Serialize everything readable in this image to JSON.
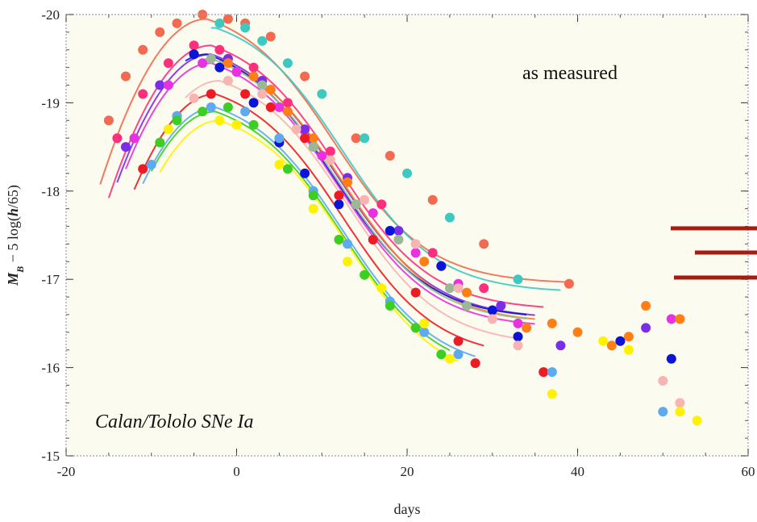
{
  "chart_data": {
    "type": "scatter",
    "xlabel": "days",
    "ylabel": "M_B − 5 log(h/65)",
    "ylabel_parts": {
      "m": "M",
      "sub": "B",
      "rest": " − 5 log(",
      "h": "h",
      "tail": "/65)"
    },
    "xlim": [
      -20,
      60
    ],
    "ylim": [
      -15,
      -20
    ],
    "y_inverted": true,
    "x_ticks": [
      -20,
      0,
      20,
      40,
      60
    ],
    "x_tick_labels": [
      "-20",
      "0",
      "20",
      "40",
      "60"
    ],
    "y_ticks": [
      -15,
      -16,
      -17,
      -18,
      -19,
      -20
    ],
    "y_tick_labels": [
      "-15",
      "-16",
      "-17",
      "-18",
      "-19",
      "-20"
    ],
    "annotations": {
      "top_right": "as measured",
      "bottom_left": "Calan/Tololo SNe Ia"
    },
    "plot_background": "#fbfcef",
    "frame_color": "#9aa0b8",
    "marker_lines_color": "#a31d12",
    "series": [
      {
        "color": "#f26a4f",
        "peak": -19.95,
        "t0": -3.5,
        "decline": 0.04,
        "x_end": 39,
        "points": [
          [
            -15,
            -18.8
          ],
          [
            -13,
            -19.3
          ],
          [
            -11,
            -19.6
          ],
          [
            -9,
            -19.8
          ],
          [
            -7,
            -19.9
          ],
          [
            -4,
            -20.0
          ],
          [
            -1,
            -19.95
          ],
          [
            1,
            -19.9
          ],
          [
            4,
            -19.75
          ],
          [
            8,
            -19.3
          ],
          [
            14,
            -18.6
          ],
          [
            18,
            -18.4
          ],
          [
            23,
            -17.9
          ],
          [
            29,
            -17.4
          ],
          [
            39,
            -16.95
          ]
        ]
      },
      {
        "color": "#3ec9c0",
        "peak": -19.85,
        "t0": -2.5,
        "decline": 0.041,
        "x_end": 38,
        "points": [
          [
            -2,
            -19.9
          ],
          [
            1,
            -19.85
          ],
          [
            3,
            -19.7
          ],
          [
            6,
            -19.45
          ],
          [
            10,
            -19.1
          ],
          [
            15,
            -18.6
          ],
          [
            20,
            -18.2
          ],
          [
            25,
            -17.7
          ],
          [
            33,
            -17.0
          ]
        ]
      },
      {
        "color": "#ff2f7e",
        "peak": -19.65,
        "t0": -3.0,
        "decline": 0.045,
        "x_end": 36,
        "points": [
          [
            -14,
            -18.6
          ],
          [
            -11,
            -19.1
          ],
          [
            -8,
            -19.45
          ],
          [
            -5,
            -19.65
          ],
          [
            -2,
            -19.6
          ],
          [
            2,
            -19.4
          ],
          [
            6,
            -19.0
          ],
          [
            11,
            -18.45
          ],
          [
            17,
            -17.85
          ],
          [
            23,
            -17.3
          ],
          [
            29,
            -16.9
          ]
        ]
      },
      {
        "color": "#7b2ee8",
        "peak": -19.55,
        "t0": -3.0,
        "decline": 0.047,
        "x_end": 35,
        "points": [
          [
            -13,
            -18.5
          ],
          [
            -9,
            -19.2
          ],
          [
            -5,
            -19.55
          ],
          [
            -1,
            -19.5
          ],
          [
            3,
            -19.25
          ],
          [
            8,
            -18.7
          ],
          [
            13,
            -18.15
          ],
          [
            19,
            -17.55
          ],
          [
            24,
            -17.15
          ],
          [
            31,
            -16.7
          ],
          [
            38,
            -16.25
          ],
          [
            48,
            -16.45
          ]
        ]
      },
      {
        "color": "#e632e0",
        "peak": -19.45,
        "t0": -3.0,
        "decline": 0.046,
        "x_end": 35,
        "points": [
          [
            -12,
            -18.6
          ],
          [
            -8,
            -19.2
          ],
          [
            -4,
            -19.45
          ],
          [
            0,
            -19.35
          ],
          [
            5,
            -18.95
          ],
          [
            10,
            -18.4
          ],
          [
            16,
            -17.75
          ],
          [
            21,
            -17.3
          ],
          [
            26,
            -16.95
          ],
          [
            33,
            -16.5
          ],
          [
            51,
            -16.55
          ]
        ]
      },
      {
        "color": "#ff7f16",
        "peak": -19.5,
        "t0": -2.5,
        "decline": 0.046,
        "x_end": 35,
        "points": [
          [
            -1,
            -19.45
          ],
          [
            2,
            -19.3
          ],
          [
            4,
            -19.15
          ],
          [
            6,
            -18.9
          ],
          [
            9,
            -18.6
          ],
          [
            13,
            -18.1
          ],
          [
            18,
            -17.55
          ],
          [
            22,
            -17.2
          ],
          [
            27,
            -16.85
          ],
          [
            34,
            -16.45
          ],
          [
            37,
            -16.5
          ],
          [
            40,
            -16.4
          ],
          [
            44,
            -16.25
          ],
          [
            46,
            -16.35
          ],
          [
            48,
            -16.7
          ],
          [
            52,
            -16.55
          ]
        ]
      },
      {
        "color": "#0c14d8",
        "peak": -19.55,
        "t0": -3.5,
        "decline": 0.048,
        "x_end": 34,
        "points": [
          [
            -5,
            -19.55
          ],
          [
            -2,
            -19.4
          ],
          [
            2,
            -19.0
          ],
          [
            5,
            -18.55
          ],
          [
            8,
            -18.2
          ],
          [
            12,
            -17.85
          ],
          [
            18,
            -17.55
          ],
          [
            24,
            -17.15
          ],
          [
            30,
            -16.65
          ],
          [
            33,
            -16.35
          ],
          [
            45,
            -16.3
          ],
          [
            51,
            -16.1
          ]
        ]
      },
      {
        "color": "#9ab895",
        "peak": -19.5,
        "t0": -3.0,
        "decline": 0.049,
        "x_end": 34,
        "points": [
          [
            -3,
            -19.5
          ],
          [
            3,
            -19.2
          ],
          [
            9,
            -18.5
          ],
          [
            14,
            -17.85
          ],
          [
            19,
            -17.45
          ],
          [
            25,
            -16.9
          ],
          [
            27,
            -16.7
          ]
        ]
      },
      {
        "color": "#f7b4b1",
        "peak": -19.25,
        "t0": -2.0,
        "decline": 0.06,
        "x_end": 33,
        "points": [
          [
            -5,
            -19.05
          ],
          [
            -1,
            -19.25
          ],
          [
            3,
            -19.1
          ],
          [
            7,
            -18.7
          ],
          [
            11,
            -18.35
          ],
          [
            15,
            -17.9
          ],
          [
            21,
            -17.4
          ],
          [
            26,
            -16.9
          ],
          [
            30,
            -16.55
          ],
          [
            33,
            -16.25
          ],
          [
            50,
            -15.85
          ],
          [
            52,
            -15.6
          ]
        ]
      },
      {
        "color": "#ed1c24",
        "peak": -19.1,
        "t0": -2.5,
        "decline": 0.064,
        "x_end": 29,
        "points": [
          [
            -11,
            -18.25
          ],
          [
            -7,
            -18.85
          ],
          [
            -3,
            -19.1
          ],
          [
            1,
            -19.1
          ],
          [
            4,
            -18.95
          ],
          [
            8,
            -18.6
          ],
          [
            12,
            -17.95
          ],
          [
            16,
            -17.45
          ],
          [
            21,
            -16.85
          ],
          [
            26,
            -16.3
          ],
          [
            28,
            -16.05
          ],
          [
            36,
            -15.95
          ]
        ]
      },
      {
        "color": "#5eaaf0",
        "peak": -18.95,
        "t0": -2.5,
        "decline": 0.068,
        "x_end": 28,
        "points": [
          [
            -10,
            -18.3
          ],
          [
            -7,
            -18.85
          ],
          [
            -3,
            -18.95
          ],
          [
            1,
            -18.9
          ],
          [
            5,
            -18.6
          ],
          [
            9,
            -18.0
          ],
          [
            13,
            -17.4
          ],
          [
            18,
            -16.75
          ],
          [
            22,
            -16.4
          ],
          [
            26,
            -16.15
          ],
          [
            37,
            -15.95
          ],
          [
            50,
            -15.5
          ]
        ]
      },
      {
        "color": "#3ccf22",
        "peak": -18.9,
        "t0": -2.5,
        "decline": 0.07,
        "x_end": 25,
        "points": [
          [
            -9,
            -18.55
          ],
          [
            -7,
            -18.8
          ],
          [
            -4,
            -18.9
          ],
          [
            -1,
            -18.95
          ],
          [
            2,
            -18.75
          ],
          [
            6,
            -18.25
          ],
          [
            9,
            -17.95
          ],
          [
            12,
            -17.45
          ],
          [
            15,
            -17.05
          ],
          [
            18,
            -16.7
          ],
          [
            21,
            -16.45
          ],
          [
            24,
            -16.15
          ]
        ]
      },
      {
        "color": "#fff200",
        "peak": -18.8,
        "t0": -2.0,
        "decline": 0.07,
        "x_end": 26,
        "points": [
          [
            -8,
            -18.7
          ],
          [
            -2,
            -18.8
          ],
          [
            0,
            -18.75
          ],
          [
            5,
            -18.3
          ],
          [
            9,
            -17.8
          ],
          [
            13,
            -17.2
          ],
          [
            17,
            -16.9
          ],
          [
            22,
            -16.5
          ],
          [
            25,
            -16.1
          ],
          [
            37,
            -15.7
          ],
          [
            43,
            -16.3
          ],
          [
            46,
            -16.2
          ],
          [
            52,
            -15.5
          ],
          [
            54,
            -15.4
          ]
        ]
      }
    ]
  },
  "overlay_marks": [
    {
      "color": "#a31d12"
    },
    {
      "color": "#a31d12"
    },
    {
      "color": "#a31d12"
    }
  ]
}
